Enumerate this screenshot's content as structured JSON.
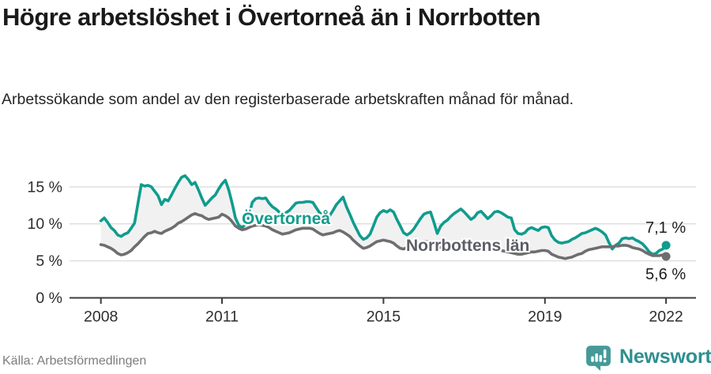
{
  "header": {
    "title": "Högre arbetslöshet i Övertorneå än i Norrbotten",
    "subtitle": "Arbetssökande som andel av den registerbaserade arbetskraften månad för månad."
  },
  "footer": {
    "source": "Källa: Arbetsförmedlingen",
    "brand": "Newsworthy",
    "brand_icon": "bar-chart-speech-bubble-icon",
    "brand_color": "#2e8f90",
    "brand_icon_color": "#459a99"
  },
  "chart_data": {
    "type": "line",
    "unit": "percent of labour force",
    "frequency": "monthly",
    "x_start": "2008-01",
    "x_end": "2022-01",
    "ylim": [
      0,
      17.5
    ],
    "grid": "horizontal",
    "legend_position": "inline-labels",
    "band_fill_between_series": "#f1f1f2",
    "axis_color": "#3d3d3d",
    "grid_color": "#dcdcdc",
    "tick_text_color": "#2d2d2d",
    "x_ticks": [
      {
        "year": 2008,
        "label": "2008"
      },
      {
        "year": 2011,
        "label": "2011"
      },
      {
        "year": 2015,
        "label": "2015"
      },
      {
        "year": 2019,
        "label": "2019"
      },
      {
        "year": 2022,
        "label": "2022"
      }
    ],
    "y_ticks": [
      {
        "value": 0,
        "label": "0 %"
      },
      {
        "value": 5,
        "label": "5 %"
      },
      {
        "value": 10,
        "label": "10 %"
      },
      {
        "value": 15,
        "label": "15 %"
      }
    ],
    "series": [
      {
        "name": "Övertorneå",
        "color": "#109c8d",
        "end_value_label": "7,1 %",
        "end_value": 7.1,
        "values": [
          10.4,
          10.8,
          10.2,
          9.5,
          9.1,
          8.5,
          8.3,
          8.6,
          8.8,
          9.4,
          10.1,
          12.7,
          15.3,
          15.1,
          15.2,
          15.0,
          14.4,
          13.8,
          12.6,
          13.3,
          13.1,
          13.9,
          14.8,
          15.6,
          16.3,
          16.5,
          16.0,
          15.3,
          15.6,
          14.6,
          13.5,
          12.5,
          13.0,
          13.5,
          13.9,
          14.7,
          15.4,
          15.9,
          14.6,
          12.8,
          10.8,
          9.8,
          9.5,
          10.0,
          11.0,
          12.9,
          13.4,
          13.5,
          13.4,
          13.5,
          12.8,
          12.3,
          12.0,
          11.6,
          11.3,
          11.5,
          11.8,
          12.3,
          12.8,
          12.9,
          12.9,
          13.0,
          13.0,
          12.9,
          12.2,
          11.5,
          11.1,
          10.9,
          11.1,
          11.8,
          12.6,
          13.1,
          13.6,
          12.3,
          11.3,
          10.2,
          9.3,
          8.4,
          7.9,
          8.1,
          8.6,
          9.7,
          10.9,
          11.5,
          11.8,
          11.6,
          11.9,
          11.6,
          10.6,
          9.7,
          8.8,
          8.5,
          8.8,
          9.3,
          10.0,
          10.7,
          11.3,
          11.5,
          11.6,
          10.2,
          8.7,
          9.7,
          10.2,
          10.5,
          11.0,
          11.4,
          11.7,
          12.0,
          11.6,
          11.1,
          10.6,
          10.9,
          11.5,
          11.7,
          11.2,
          10.7,
          11.1,
          11.6,
          11.7,
          11.5,
          11.2,
          10.9,
          10.8,
          9.2,
          8.7,
          8.6,
          8.8,
          9.3,
          9.5,
          9.3,
          9.1,
          9.5,
          9.6,
          9.5,
          8.4,
          7.8,
          7.5,
          7.4,
          7.5,
          7.6,
          7.9,
          8.1,
          8.4,
          8.7,
          8.8,
          9.0,
          9.2,
          9.4,
          9.2,
          8.9,
          8.5,
          7.5,
          6.6,
          7.1,
          7.4,
          8.0,
          8.1,
          8.0,
          8.1,
          7.8,
          7.6,
          7.3,
          6.8,
          6.2,
          5.9,
          6.0,
          6.4,
          6.6,
          7.1
        ]
      },
      {
        "name": "Norrbottens län",
        "color": "#6e6e70",
        "end_value_label": "5,6 %",
        "end_value": 5.6,
        "values": [
          7.2,
          7.1,
          6.9,
          6.7,
          6.4,
          6.0,
          5.8,
          5.9,
          6.1,
          6.4,
          6.9,
          7.3,
          7.8,
          8.3,
          8.7,
          8.8,
          9.0,
          8.8,
          8.7,
          9.0,
          9.2,
          9.4,
          9.7,
          10.1,
          10.3,
          10.6,
          10.9,
          11.2,
          11.4,
          11.2,
          11.1,
          10.8,
          10.6,
          10.7,
          10.8,
          10.9,
          11.3,
          11.1,
          10.8,
          10.3,
          9.7,
          9.4,
          9.2,
          9.3,
          9.5,
          9.7,
          9.8,
          9.9,
          9.8,
          9.7,
          9.5,
          9.2,
          9.0,
          8.8,
          8.6,
          8.7,
          8.8,
          9.0,
          9.2,
          9.3,
          9.4,
          9.4,
          9.4,
          9.3,
          9.0,
          8.7,
          8.5,
          8.6,
          8.7,
          8.8,
          9.0,
          9.1,
          8.9,
          8.6,
          8.3,
          7.8,
          7.4,
          7.0,
          6.7,
          6.8,
          7.0,
          7.3,
          7.6,
          7.7,
          7.8,
          7.7,
          7.6,
          7.4,
          7.0,
          6.7,
          6.6,
          6.8,
          7.1,
          7.2,
          7.1,
          7.3,
          7.6,
          7.6,
          7.4,
          7.2,
          7.0,
          6.8,
          6.7,
          6.8,
          6.9,
          7.0,
          7.1,
          7.2,
          7.2,
          7.1,
          7.0,
          6.9,
          6.8,
          6.6,
          6.5,
          6.6,
          6.6,
          6.6,
          6.5,
          6.4,
          6.3,
          6.2,
          6.1,
          6.0,
          5.9,
          5.9,
          6.0,
          6.1,
          6.2,
          6.2,
          6.3,
          6.4,
          6.4,
          6.3,
          5.9,
          5.7,
          5.5,
          5.4,
          5.3,
          5.4,
          5.5,
          5.7,
          5.9,
          6.0,
          6.3,
          6.5,
          6.6,
          6.7,
          6.8,
          6.9,
          6.9,
          6.9,
          6.9,
          7.0,
          7.0,
          7.1,
          7.1,
          7.0,
          6.8,
          6.7,
          6.6,
          6.4,
          6.1,
          5.9,
          5.7,
          5.7,
          5.7,
          5.8,
          5.6
        ]
      }
    ]
  }
}
